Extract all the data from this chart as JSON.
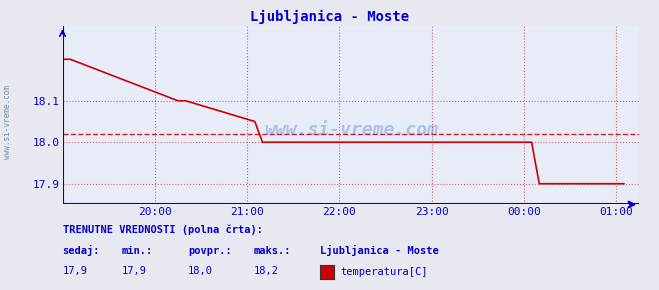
{
  "title": "Ljubljanica - Moste",
  "title_color": "#0000cc",
  "bg_color": "#e8e8f0",
  "plot_bg_color": "#e8ecf8",
  "grid_color": "#cc4444",
  "line_color": "#cc0000",
  "axis_color": "#0000cc",
  "avg_value": 18.02,
  "ylim_min": 17.85,
  "ylim_max": 18.28,
  "yticks": [
    17.9,
    18.0,
    18.1
  ],
  "xtick_labels": [
    "20:00",
    "21:00",
    "22:00",
    "23:00",
    "00:00",
    "01:00"
  ],
  "xtick_positions": [
    60,
    120,
    180,
    240,
    300,
    360
  ],
  "x_min": 0,
  "x_max": 375,
  "watermark": "www.si-vreme.com",
  "legend_title": "Ljubljanica - Moste",
  "legend_label": "temperatura[C]",
  "legend_color": "#cc0000",
  "footer_label1": "TRENUTNE VREDNOSTI (polna črta):",
  "footer_col1": "sedaj:",
  "footer_col2": "min.:",
  "footer_col3": "povpr.:",
  "footer_col4": "maks.:",
  "footer_val1": "17,9",
  "footer_val2": "17,9",
  "footer_val3": "18,0",
  "footer_val4": "18,2",
  "temp_x": [
    0,
    5,
    75,
    80,
    125,
    130,
    305,
    310,
    365
  ],
  "temp_y": [
    18.2,
    18.2,
    18.1,
    18.1,
    18.05,
    18.0,
    18.0,
    17.9,
    17.9
  ]
}
